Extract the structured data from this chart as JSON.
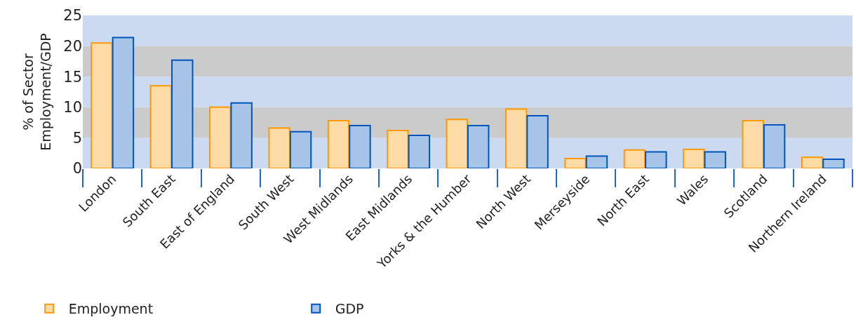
{
  "chart_data": {
    "type": "bar",
    "ylabel": "% of Sector\nEmployment/GDP",
    "categories": [
      "London",
      "South East",
      "East of England",
      "South West",
      "West Midlands",
      "East Midlands",
      "Yorks & the Humber",
      "North West",
      "Merseyside",
      "North East",
      "Wales",
      "Scotland",
      "Northern Ireland"
    ],
    "series": [
      {
        "name": "Employment",
        "color": "#ff9900",
        "values": [
          20.5,
          13.5,
          10.0,
          6.6,
          7.8,
          6.2,
          8.0,
          9.7,
          1.6,
          3.0,
          3.1,
          7.8,
          1.8
        ]
      },
      {
        "name": "GDP",
        "color": "#0055bb",
        "values": [
          21.4,
          17.7,
          10.7,
          6.0,
          7.0,
          5.4,
          7.0,
          8.6,
          2.0,
          2.7,
          2.7,
          7.1,
          1.5
        ]
      }
    ],
    "ylim": [
      0,
      25
    ],
    "yticks": [
      0,
      5,
      10,
      15,
      20,
      25
    ],
    "bands": [
      {
        "axis": "y",
        "from": 0,
        "to": 5,
        "color": "#cbdaf0"
      },
      {
        "axis": "y",
        "from": 5,
        "to": 10,
        "color": "#cbcbcb"
      },
      {
        "axis": "y",
        "from": 10,
        "to": 15,
        "color": "#cbdaf0"
      },
      {
        "axis": "y",
        "from": 15,
        "to": 20,
        "color": "#cbcbcb"
      },
      {
        "axis": "y",
        "from": 20,
        "to": 25,
        "color": "#cbdaf0"
      }
    ],
    "legend": "bottom left"
  }
}
